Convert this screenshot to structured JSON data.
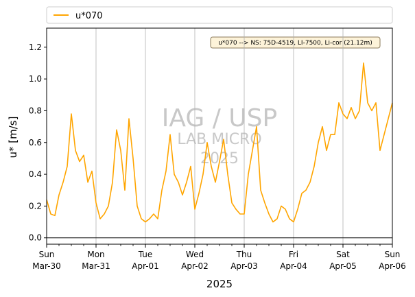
{
  "chart_data": {
    "type": "line",
    "xlabel": "2025",
    "ylabel": "u* [m/s]",
    "ylim": [
      -0.04,
      1.32
    ],
    "yticks": [
      0.0,
      0.2,
      0.4,
      0.6,
      0.8,
      1.0,
      1.2
    ],
    "ytick_labels": [
      "0.0",
      "0.2",
      "0.4",
      "0.6",
      "0.8",
      "1.0",
      "1.2"
    ],
    "xlim_days": [
      0,
      7
    ],
    "x_start_date": "2025-03-30",
    "x_ticks": [
      {
        "day": "Sun",
        "date": "Mar-30"
      },
      {
        "day": "Mon",
        "date": "Mar-31"
      },
      {
        "day": "Tue",
        "date": "Apr-01"
      },
      {
        "day": "Wed",
        "date": "Apr-02"
      },
      {
        "day": "Thu",
        "date": "Apr-03"
      },
      {
        "day": "Fri",
        "date": "Apr-04"
      },
      {
        "day": "Sat",
        "date": "Apr-05"
      },
      {
        "day": "Sun",
        "date": "Apr-06"
      }
    ],
    "grid": "vertical at daily ticks",
    "zero_line": true,
    "legend": {
      "placement": "top, above plot",
      "entries": [
        "u*070"
      ]
    },
    "annotation": "u*070 --> NS: 75D-4519, LI-7500, Li-cor (21.12m)",
    "watermark": [
      "IAG / USP",
      "LAB MICRO",
      "2025"
    ],
    "series": [
      {
        "name": "u*070",
        "color": "#ffa500",
        "x_hours": [
          0,
          2,
          4,
          6,
          8,
          10,
          12,
          14,
          16,
          18,
          20,
          22,
          24,
          26,
          28,
          30,
          32,
          34,
          36,
          38,
          40,
          42,
          44,
          46,
          48,
          50,
          52,
          54,
          56,
          58,
          60,
          62,
          64,
          66,
          68,
          70,
          72,
          74,
          76,
          78,
          80,
          82,
          84,
          86,
          88,
          90,
          92,
          94,
          96,
          98,
          100,
          102,
          104,
          106,
          108,
          110,
          112,
          114,
          116,
          118,
          120,
          122,
          124,
          126,
          128,
          130,
          132,
          134,
          136,
          138,
          140,
          142,
          144,
          146,
          148,
          150,
          152,
          154,
          156,
          158,
          160,
          162,
          164,
          166,
          168
        ],
        "values": [
          0.24,
          0.15,
          0.14,
          0.27,
          0.35,
          0.45,
          0.78,
          0.55,
          0.48,
          0.52,
          0.35,
          0.42,
          0.22,
          0.12,
          0.15,
          0.2,
          0.35,
          0.68,
          0.55,
          0.3,
          0.75,
          0.5,
          0.2,
          0.12,
          0.1,
          0.12,
          0.15,
          0.12,
          0.3,
          0.42,
          0.65,
          0.4,
          0.35,
          0.27,
          0.35,
          0.45,
          0.18,
          0.28,
          0.4,
          0.6,
          0.45,
          0.35,
          0.48,
          0.62,
          0.4,
          0.22,
          0.18,
          0.15,
          0.15,
          0.4,
          0.55,
          0.7,
          0.3,
          0.22,
          0.15,
          0.1,
          0.12,
          0.2,
          0.18,
          0.12,
          0.1,
          0.18,
          0.28,
          0.3,
          0.35,
          0.45,
          0.6,
          0.7,
          0.55,
          0.65,
          0.65,
          0.85,
          0.78,
          0.75,
          0.82,
          0.75,
          0.8,
          1.1,
          0.85,
          0.8,
          0.85,
          0.55,
          0.65,
          0.75,
          0.85
        ]
      }
    ]
  }
}
